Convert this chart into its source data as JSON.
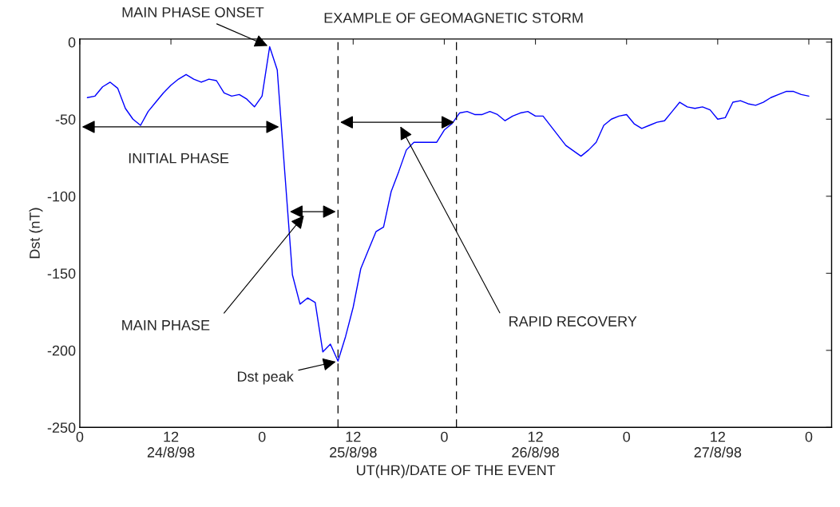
{
  "chart_data": {
    "type": "line",
    "title": "EXAMPLE OF GEOMAGNETIC STORM",
    "xlabel": "UT(HR)/DATE OF THE EVENT",
    "ylabel": "Dst (nT)",
    "series": [
      {
        "color": "#0000ff",
        "x": [
          "1998-08-24T01:00",
          "1998-08-24T02:00",
          "1998-08-24T03:00",
          "1998-08-24T04:00",
          "1998-08-24T05:00",
          "1998-08-24T06:00",
          "1998-08-24T07:00",
          "1998-08-24T08:00",
          "1998-08-24T09:00",
          "1998-08-24T10:00",
          "1998-08-24T11:00",
          "1998-08-24T12:00",
          "1998-08-24T13:00",
          "1998-08-24T14:00",
          "1998-08-24T15:00",
          "1998-08-24T16:00",
          "1998-08-24T17:00",
          "1998-08-24T18:00",
          "1998-08-24T19:00",
          "1998-08-24T20:00",
          "1998-08-24T21:00",
          "1998-08-24T22:00",
          "1998-08-24T23:00",
          "1998-08-25T00:00",
          "1998-08-25T01:00",
          "1998-08-25T02:00",
          "1998-08-25T03:00",
          "1998-08-25T04:00",
          "1998-08-25T05:00",
          "1998-08-25T06:00",
          "1998-08-25T07:00",
          "1998-08-25T08:00",
          "1998-08-25T09:00",
          "1998-08-25T10:00",
          "1998-08-25T11:00",
          "1998-08-25T12:00",
          "1998-08-25T13:00",
          "1998-08-25T14:00",
          "1998-08-25T15:00",
          "1998-08-25T16:00",
          "1998-08-25T17:00",
          "1998-08-25T18:00",
          "1998-08-25T19:00",
          "1998-08-25T20:00",
          "1998-08-25T21:00",
          "1998-08-25T22:00",
          "1998-08-25T23:00",
          "1998-08-26T00:00",
          "1998-08-26T01:00",
          "1998-08-26T02:00",
          "1998-08-26T03:00",
          "1998-08-26T04:00",
          "1998-08-26T05:00",
          "1998-08-26T06:00",
          "1998-08-26T07:00",
          "1998-08-26T08:00",
          "1998-08-26T09:00",
          "1998-08-26T10:00",
          "1998-08-26T11:00",
          "1998-08-26T12:00",
          "1998-08-26T13:00",
          "1998-08-26T16:00",
          "1998-08-26T18:00",
          "1998-08-26T19:00",
          "1998-08-26T20:00",
          "1998-08-26T21:00",
          "1998-08-26T22:00",
          "1998-08-26T23:00",
          "1998-08-27T00:00",
          "1998-08-27T01:00",
          "1998-08-27T02:00",
          "1998-08-27T03:00",
          "1998-08-27T04:00",
          "1998-08-27T05:00",
          "1998-08-27T06:00",
          "1998-08-27T07:00",
          "1998-08-27T08:00",
          "1998-08-27T09:00",
          "1998-08-27T10:00",
          "1998-08-27T11:00",
          "1998-08-27T12:00",
          "1998-08-27T13:00",
          "1998-08-27T14:00",
          "1998-08-27T15:00",
          "1998-08-27T16:00",
          "1998-08-27T17:00",
          "1998-08-27T18:00",
          "1998-08-27T19:00",
          "1998-08-27T20:00",
          "1998-08-27T21:00",
          "1998-08-27T22:00",
          "1998-08-27T23:00",
          "1998-08-28T00:00"
        ],
        "values": [
          -36,
          -35,
          -29,
          -26,
          -30,
          -43,
          -50,
          -54,
          -45,
          -39,
          -33,
          -28,
          -24,
          -21,
          -24,
          -26,
          -24,
          -25,
          -33,
          -35,
          -34,
          -37,
          -42,
          -35,
          -3,
          -18,
          -85,
          -151,
          -170,
          -166,
          -169,
          -201,
          -196,
          -207,
          -191,
          -172,
          -147,
          -135,
          -123,
          -120,
          -97,
          -84,
          -70,
          -65,
          -65,
          -65,
          -65,
          -57,
          -53,
          -46,
          -45,
          -47,
          -47,
          -45,
          -47,
          -51,
          -48,
          -46,
          -45,
          -48,
          -48,
          -67,
          -74,
          -70,
          -65,
          -54,
          -50,
          -48,
          -47,
          -53,
          -56,
          -54,
          -52,
          -51,
          -45,
          -39,
          -42,
          -43,
          -42,
          -44,
          -50,
          -49,
          -39,
          -38,
          -40,
          -41,
          -39,
          -36,
          -34,
          -32,
          -32,
          -34,
          -35
        ]
      }
    ],
    "xlim": [
      "1998-08-24T00:00",
      "1998-08-28T03:00"
    ],
    "ylim": [
      -250,
      2
    ],
    "xticks": [
      {
        "value": "1998-08-24T00:00",
        "label": "0"
      },
      {
        "value": "1998-08-24T12:00",
        "label": "12\n24/8/98"
      },
      {
        "value": "1998-08-25T00:00",
        "label": "0"
      },
      {
        "value": "1998-08-25T12:00",
        "label": "12\n25/8/98"
      },
      {
        "value": "1998-08-26T00:00",
        "label": "0"
      },
      {
        "value": "1998-08-26T12:00",
        "label": "12\n26/8/98"
      },
      {
        "value": "1998-08-27T00:00",
        "label": "0"
      },
      {
        "value": "1998-08-27T12:00",
        "label": "12\n27/8/98"
      },
      {
        "value": "1998-08-28T00:00",
        "label": "0"
      }
    ],
    "yticks": [
      -250,
      -200,
      -150,
      -100,
      -50,
      0
    ],
    "ref_lines": [
      {
        "axis": "x",
        "value": "1998-08-25T10:00",
        "line_style": "dashed",
        "color": "#000000"
      },
      {
        "axis": "x",
        "value": "1998-08-26T01:36",
        "line_style": "dashed",
        "color": "#000000"
      }
    ],
    "annotations": [
      {
        "text": "MAIN PHASE ONSET",
        "x": "1998-08-25T01:00",
        "y": -3
      },
      "INITIAL PHASE",
      "MAIN PHASE",
      {
        "text": "Dst peak",
        "x": "1998-08-25T10:00",
        "y": -207
      },
      "RAPID RECOVERY"
    ],
    "grid": false,
    "legend": false,
    "marker": "none",
    "line_style": "solid"
  }
}
